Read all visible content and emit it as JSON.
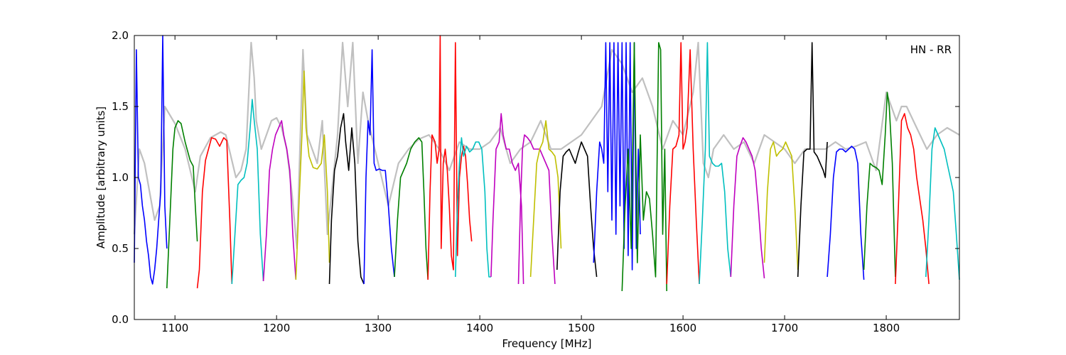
{
  "chart_data": {
    "type": "line",
    "title": "",
    "xlabel": "Frequency [MHz]",
    "ylabel": "Amplitude [arbitrary units]",
    "annotation": "HN - RR",
    "xlim": [
      1060,
      1872
    ],
    "ylim": [
      0.0,
      2.0
    ],
    "x_ticks": [
      1100,
      1200,
      1300,
      1400,
      1500,
      1600,
      1700,
      1800
    ],
    "y_ticks": [
      0.0,
      0.5,
      1.0,
      1.5,
      2.0
    ],
    "x_tick_labels": [
      "1100",
      "1200",
      "1300",
      "1400",
      "1500",
      "1600",
      "1700",
      "1800"
    ],
    "y_tick_labels": [
      "0.0",
      "0.5",
      "1.0",
      "1.5",
      "2.0"
    ],
    "grid": false,
    "legend": "none",
    "series": [
      {
        "color": "#c0c0c0",
        "x": [
          1060,
          1065,
          1070,
          1075,
          1080,
          1085,
          1090,
          1100,
          1110,
          1120,
          1125,
          1135,
          1145,
          1150,
          1160,
          1165,
          1170,
          1175,
          1178,
          1180,
          1185,
          1190,
          1195,
          1200,
          1205,
          1210,
          1215,
          1220,
          1226,
          1230,
          1240,
          1245,
          1250,
          1260,
          1265,
          1270,
          1275,
          1280,
          1285,
          1290,
          1295,
          1300,
          1310,
          1320,
          1330,
          1340,
          1350,
          1360,
          1370,
          1380,
          1390,
          1400,
          1410,
          1420,
          1430,
          1440,
          1450,
          1460,
          1470,
          1480,
          1490,
          1500,
          1510,
          1520,
          1530,
          1540,
          1550,
          1560,
          1570,
          1580,
          1590,
          1600,
          1610,
          1615,
          1620,
          1625,
          1630,
          1640,
          1650,
          1660,
          1670,
          1680,
          1690,
          1700,
          1710,
          1720,
          1730,
          1740,
          1750,
          1760,
          1770,
          1780,
          1790,
          1800,
          1810,
          1815,
          1820,
          1830,
          1840,
          1850,
          1860,
          1872
        ],
        "y": [
          0.6,
          1.2,
          1.1,
          0.9,
          0.7,
          0.8,
          1.5,
          1.38,
          1.2,
          0.9,
          1.15,
          1.28,
          1.32,
          1.3,
          1.0,
          1.05,
          1.2,
          1.95,
          1.7,
          1.4,
          1.2,
          1.3,
          1.4,
          1.42,
          1.35,
          1.2,
          0.9,
          0.5,
          1.9,
          1.3,
          1.1,
          1.4,
          0.6,
          1.3,
          1.95,
          1.5,
          1.95,
          1.1,
          1.6,
          1.4,
          1.25,
          1.1,
          0.8,
          1.1,
          1.2,
          1.27,
          1.3,
          1.2,
          1.05,
          1.25,
          1.2,
          1.2,
          1.25,
          1.35,
          1.1,
          1.2,
          1.25,
          1.4,
          1.2,
          1.2,
          1.25,
          1.3,
          1.4,
          1.5,
          1.9,
          1.8,
          1.6,
          1.7,
          1.5,
          1.2,
          1.4,
          1.3,
          1.6,
          1.95,
          1.1,
          1.0,
          1.2,
          1.3,
          1.2,
          1.25,
          1.1,
          1.3,
          1.25,
          1.2,
          1.1,
          1.2,
          1.2,
          1.2,
          1.25,
          1.2,
          1.22,
          1.25,
          1.05,
          1.6,
          1.4,
          1.5,
          1.5,
          1.35,
          1.2,
          1.3,
          1.35,
          1.3
        ]
      },
      {
        "color": "#0000ff",
        "x": [
          1060,
          1062,
          1064,
          1066,
          1068,
          1070,
          1072,
          1074,
          1076,
          1078,
          1080,
          1082,
          1084,
          1086,
          1088,
          1090,
          1092
        ],
        "y": [
          0.4,
          1.9,
          1.0,
          0.95,
          0.8,
          0.7,
          0.55,
          0.45,
          0.3,
          0.25,
          0.35,
          0.5,
          0.7,
          0.9,
          2.0,
          0.8,
          0.5
        ]
      },
      {
        "color": "#008000",
        "x": [
          1092,
          1095,
          1098,
          1100,
          1103,
          1106,
          1110,
          1115,
          1118,
          1120,
          1122
        ],
        "y": [
          0.22,
          0.7,
          1.2,
          1.35,
          1.4,
          1.38,
          1.25,
          1.12,
          1.08,
          0.8,
          0.55
        ]
      },
      {
        "color": "#ff0000",
        "x": [
          1122,
          1124,
          1127,
          1130,
          1133,
          1136,
          1140,
          1144,
          1148,
          1151,
          1154,
          1156
        ],
        "y": [
          0.22,
          0.35,
          0.9,
          1.12,
          1.2,
          1.28,
          1.27,
          1.22,
          1.28,
          1.26,
          0.7,
          0.25
        ]
      },
      {
        "color": "#00bfbf",
        "x": [
          1156,
          1159,
          1162,
          1165,
          1168,
          1171,
          1174,
          1176,
          1178,
          1181,
          1184,
          1187
        ],
        "y": [
          0.25,
          0.6,
          0.95,
          0.98,
          1.0,
          1.1,
          1.35,
          1.55,
          1.4,
          1.2,
          0.6,
          0.27
        ]
      },
      {
        "color": "#bf00bf",
        "x": [
          1187,
          1190,
          1193,
          1196,
          1199,
          1202,
          1205,
          1207,
          1210,
          1213,
          1216,
          1219
        ],
        "y": [
          0.27,
          0.6,
          1.05,
          1.2,
          1.3,
          1.35,
          1.4,
          1.3,
          1.2,
          1.05,
          0.6,
          0.28
        ]
      },
      {
        "color": "#bfbf00",
        "x": [
          1219,
          1222,
          1225,
          1227,
          1229,
          1232,
          1236,
          1240,
          1244,
          1247,
          1250,
          1252
        ],
        "y": [
          0.28,
          0.8,
          1.3,
          1.75,
          1.35,
          1.15,
          1.07,
          1.06,
          1.1,
          1.3,
          0.9,
          0.4
        ]
      },
      {
        "color": "#000000",
        "x": [
          1252,
          1254,
          1257,
          1260,
          1263,
          1266,
          1268,
          1271,
          1274,
          1277,
          1280,
          1283,
          1286
        ],
        "y": [
          0.25,
          0.7,
          1.05,
          1.15,
          1.35,
          1.45,
          1.25,
          1.05,
          1.35,
          1.1,
          0.55,
          0.3,
          0.25
        ]
      },
      {
        "color": "#0000ff",
        "x": [
          1286,
          1288,
          1290,
          1292,
          1294,
          1296,
          1298,
          1301,
          1304,
          1307,
          1310,
          1313,
          1316
        ],
        "y": [
          0.25,
          1.0,
          1.4,
          1.3,
          1.9,
          1.1,
          1.05,
          1.06,
          1.05,
          1.05,
          0.8,
          0.5,
          0.3
        ]
      },
      {
        "color": "#008000",
        "x": [
          1316,
          1319,
          1322,
          1325,
          1328,
          1332,
          1336,
          1340,
          1343,
          1345,
          1347,
          1349
        ],
        "y": [
          0.3,
          0.7,
          1.0,
          1.05,
          1.1,
          1.2,
          1.25,
          1.28,
          1.25,
          0.9,
          0.5,
          0.28
        ]
      },
      {
        "color": "#ff0000",
        "x": [
          1349,
          1351,
          1353,
          1356,
          1358,
          1360,
          1361,
          1362,
          1364,
          1366,
          1368,
          1370,
          1372,
          1374,
          1376,
          1378,
          1380,
          1382,
          1384,
          1386,
          1388,
          1390,
          1392
        ],
        "y": [
          0.28,
          0.9,
          1.3,
          1.25,
          1.1,
          1.2,
          2.0,
          0.5,
          1.1,
          1.2,
          1.05,
          0.8,
          0.45,
          0.35,
          1.95,
          0.45,
          1.0,
          1.15,
          1.22,
          1.15,
          0.95,
          0.7,
          0.55
        ]
      },
      {
        "color": "#00bfbf",
        "x": [
          1376,
          1378,
          1380,
          1382,
          1384,
          1387,
          1390,
          1393,
          1396,
          1399,
          1402,
          1405,
          1407,
          1409,
          1411
        ],
        "y": [
          0.3,
          0.8,
          1.1,
          1.28,
          1.15,
          1.22,
          1.18,
          1.2,
          1.25,
          1.25,
          1.2,
          0.9,
          0.5,
          0.3,
          0.3
        ]
      },
      {
        "color": "#bf00bf",
        "x": [
          1411,
          1413,
          1416,
          1419,
          1421,
          1423,
          1426,
          1429,
          1432,
          1435,
          1438,
          1441,
          1443
        ],
        "y": [
          0.3,
          0.7,
          1.2,
          1.25,
          1.45,
          1.3,
          1.2,
          1.2,
          1.1,
          1.05,
          1.1,
          0.8,
          0.25
        ]
      },
      {
        "color": "#bf00bf",
        "x": [
          1438,
          1440,
          1442,
          1444,
          1447,
          1450,
          1453,
          1456,
          1459,
          1462,
          1465,
          1468,
          1471,
          1474
        ],
        "y": [
          0.25,
          0.8,
          1.2,
          1.3,
          1.28,
          1.25,
          1.2,
          1.2,
          1.2,
          1.15,
          1.1,
          1.05,
          0.6,
          0.25
        ]
      },
      {
        "color": "#bfbf00",
        "x": [
          1450,
          1453,
          1456,
          1459,
          1462,
          1465,
          1468,
          1471,
          1474,
          1477,
          1480
        ],
        "y": [
          0.3,
          0.7,
          1.1,
          1.2,
          1.25,
          1.4,
          1.2,
          1.18,
          1.15,
          1.0,
          0.5
        ]
      },
      {
        "color": "#000000",
        "x": [
          1476,
          1479,
          1482,
          1485,
          1488,
          1491,
          1494,
          1497,
          1500,
          1503,
          1506,
          1509,
          1512,
          1515
        ],
        "y": [
          0.35,
          0.9,
          1.15,
          1.18,
          1.2,
          1.15,
          1.1,
          1.18,
          1.25,
          1.2,
          1.15,
          0.8,
          0.5,
          0.3
        ]
      },
      {
        "color": "#0000ff",
        "x": [
          1512,
          1515,
          1518,
          1520,
          1522,
          1524,
          1526,
          1528,
          1530,
          1532,
          1534,
          1536,
          1538,
          1540,
          1542,
          1544,
          1546,
          1548,
          1550,
          1552,
          1554,
          1556,
          1558
        ],
        "y": [
          0.4,
          0.9,
          1.25,
          1.2,
          1.1,
          1.95,
          0.9,
          1.95,
          0.7,
          1.95,
          0.6,
          1.95,
          0.8,
          1.95,
          0.5,
          1.95,
          0.45,
          1.95,
          0.35,
          1.95,
          0.5,
          1.2,
          0.6
        ]
      },
      {
        "color": "#008000",
        "x": [
          1540,
          1543,
          1546,
          1549,
          1552,
          1555,
          1558,
          1561,
          1564,
          1567,
          1570,
          1573,
          1576,
          1578,
          1580,
          1582,
          1584
        ],
        "y": [
          0.2,
          0.8,
          1.2,
          0.5,
          1.95,
          0.4,
          1.3,
          0.7,
          0.9,
          0.85,
          0.6,
          0.3,
          1.95,
          1.9,
          0.6,
          1.2,
          0.2
        ]
      },
      {
        "color": "#ff0000",
        "x": [
          1584,
          1587,
          1590,
          1593,
          1596,
          1598,
          1600,
          1602,
          1604,
          1607,
          1610,
          1613,
          1616
        ],
        "y": [
          0.25,
          0.8,
          1.2,
          1.22,
          1.3,
          1.95,
          1.2,
          1.25,
          1.35,
          1.9,
          1.2,
          0.7,
          0.25
        ]
      },
      {
        "color": "#00bfbf",
        "x": [
          1616,
          1619,
          1622,
          1624,
          1626,
          1629,
          1632,
          1635,
          1638,
          1641,
          1644,
          1647
        ],
        "y": [
          0.25,
          0.7,
          1.2,
          1.95,
          1.15,
          1.1,
          1.08,
          1.08,
          1.1,
          0.9,
          0.5,
          0.3
        ]
      },
      {
        "color": "#bf00bf",
        "x": [
          1647,
          1650,
          1653,
          1656,
          1659,
          1662,
          1665,
          1668,
          1671,
          1674,
          1677,
          1680
        ],
        "y": [
          0.3,
          0.8,
          1.15,
          1.22,
          1.28,
          1.25,
          1.2,
          1.15,
          1.05,
          0.8,
          0.5,
          0.29
        ]
      },
      {
        "color": "#bfbf00",
        "x": [
          1680,
          1683,
          1686,
          1689,
          1692,
          1695,
          1698,
          1701,
          1704,
          1707,
          1710,
          1713
        ],
        "y": [
          0.4,
          0.9,
          1.2,
          1.25,
          1.15,
          1.18,
          1.2,
          1.25,
          1.2,
          1.15,
          0.8,
          0.35
        ]
      },
      {
        "color": "#000000",
        "x": [
          1713,
          1716,
          1719,
          1722,
          1725,
          1727,
          1729,
          1732,
          1735,
          1738,
          1740,
          1742
        ],
        "y": [
          0.3,
          0.8,
          1.18,
          1.2,
          1.2,
          1.95,
          1.18,
          1.15,
          1.1,
          1.05,
          1.0,
          1.25
        ]
      },
      {
        "color": "#0000ff",
        "x": [
          1742,
          1745,
          1748,
          1751,
          1754,
          1757,
          1760,
          1763,
          1766,
          1769,
          1772,
          1775,
          1778
        ],
        "y": [
          0.3,
          0.6,
          1.0,
          1.18,
          1.2,
          1.2,
          1.18,
          1.2,
          1.22,
          1.2,
          1.1,
          0.6,
          0.28
        ]
      },
      {
        "color": "#008000",
        "x": [
          1778,
          1781,
          1784,
          1787,
          1790,
          1793,
          1796,
          1799,
          1801,
          1803,
          1806,
          1809
        ],
        "y": [
          0.35,
          0.8,
          1.1,
          1.08,
          1.07,
          1.05,
          0.95,
          1.3,
          1.6,
          1.5,
          1.1,
          0.3
        ]
      },
      {
        "color": "#ff0000",
        "x": [
          1809,
          1812,
          1815,
          1818,
          1821,
          1824,
          1827,
          1830,
          1833,
          1836,
          1839,
          1842
        ],
        "y": [
          0.25,
          0.8,
          1.4,
          1.45,
          1.35,
          1.3,
          1.2,
          1.0,
          0.85,
          0.7,
          0.5,
          0.25
        ]
      },
      {
        "color": "#00bfbf",
        "x": [
          1839,
          1842,
          1845,
          1848,
          1851,
          1854,
          1857,
          1860,
          1863,
          1866,
          1869,
          1872
        ],
        "y": [
          0.3,
          0.7,
          1.2,
          1.35,
          1.3,
          1.25,
          1.2,
          1.1,
          1.0,
          0.9,
          0.6,
          0.28
        ]
      }
    ]
  }
}
